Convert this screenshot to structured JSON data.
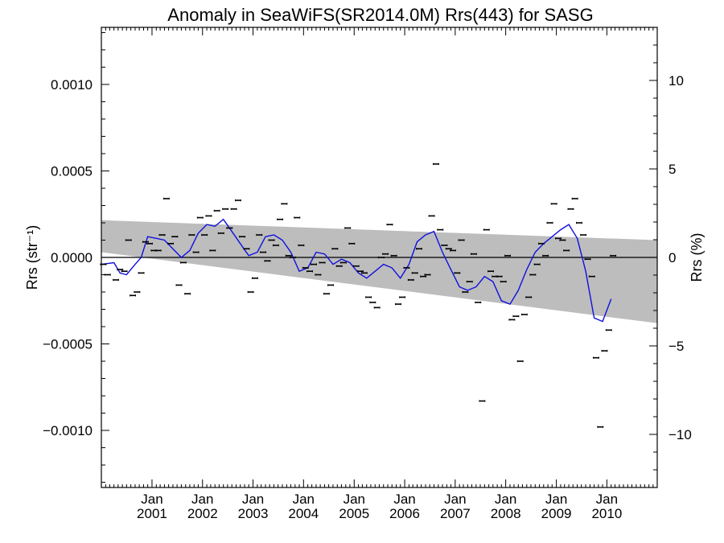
{
  "chart_data": {
    "type": "scatter",
    "title": "Anomaly in SeaWiFS(SR2014.0M) Rrs(443) for SASG",
    "ylabel_left": "Rrs (str⁻¹)",
    "ylabel_right": "Rrs (%)",
    "x_range": [
      "2000-01-01",
      "2010-12-31"
    ],
    "ylim_left": [
      -0.00133,
      0.00133
    ],
    "ylim_right": [
      -13.0,
      13.0
    ],
    "x_ticks": [
      {
        "month": "Jan",
        "year": "2001",
        "date": "2001-01-01"
      },
      {
        "month": "Jan",
        "year": "2002",
        "date": "2002-01-01"
      },
      {
        "month": "Jan",
        "year": "2003",
        "date": "2003-01-01"
      },
      {
        "month": "Jan",
        "year": "2004",
        "date": "2004-01-01"
      },
      {
        "month": "Jan",
        "year": "2005",
        "date": "2005-01-01"
      },
      {
        "month": "Jan",
        "year": "2006",
        "date": "2006-01-01"
      },
      {
        "month": "Jan",
        "year": "2007",
        "date": "2007-01-01"
      },
      {
        "month": "Jan",
        "year": "2008",
        "date": "2008-01-01"
      },
      {
        "month": "Jan",
        "year": "2009",
        "date": "2009-01-01"
      },
      {
        "month": "Jan",
        "year": "2010",
        "date": "2010-01-01"
      }
    ],
    "y_ticks_left": [
      {
        "value": 0.001,
        "label": "0.0010"
      },
      {
        "value": 0.0005,
        "label": "0.0005"
      },
      {
        "value": 0.0,
        "label": "0.0000"
      },
      {
        "value": -0.0005,
        "label": "−0.0005"
      },
      {
        "value": -0.001,
        "label": "−0.0010"
      }
    ],
    "y_ticks_right": [
      {
        "value": 10,
        "label": "10"
      },
      {
        "value": 5,
        "label": "5"
      },
      {
        "value": 0,
        "label": "0"
      },
      {
        "value": -5,
        "label": "−5"
      },
      {
        "value": -10,
        "label": "−10"
      }
    ],
    "band": {
      "upper": [
        [
          "2000-01-01",
          0.000215
        ],
        [
          "2010-12-31",
          0.0001
        ]
      ],
      "lower": [
        [
          "2000-01-01",
          3e-05
        ],
        [
          "2010-12-31",
          -0.00038
        ]
      ]
    },
    "zero_line": 0.0,
    "error_bar_halfwidth": 5e-06,
    "points": [
      [
        "2000-01-15",
        -4e-05
      ],
      [
        "2000-02-15",
        -0.0001
      ],
      [
        "2000-04-15",
        -0.00013
      ],
      [
        "2000-05-15",
        -7e-05
      ],
      [
        "2000-06-15",
        -8e-05
      ],
      [
        "2000-07-15",
        0.0001
      ],
      [
        "2000-08-15",
        -0.00022
      ],
      [
        "2000-09-15",
        -0.0002
      ],
      [
        "2000-10-15",
        -9e-05
      ],
      [
        "2000-11-15",
        9e-05
      ],
      [
        "2000-12-15",
        8e-05
      ],
      [
        "2001-01-15",
        4e-05
      ],
      [
        "2001-02-15",
        4e-05
      ],
      [
        "2001-03-15",
        0.00013
      ],
      [
        "2001-04-15",
        0.00034
      ],
      [
        "2001-05-15",
        8e-05
      ],
      [
        "2001-06-15",
        0.00012
      ],
      [
        "2001-07-15",
        -0.00016
      ],
      [
        "2001-08-15",
        -3e-05
      ],
      [
        "2001-09-15",
        -0.00021
      ],
      [
        "2001-10-15",
        0.00013
      ],
      [
        "2001-11-15",
        3e-05
      ],
      [
        "2001-12-15",
        0.00023
      ],
      [
        "2002-01-15",
        0.00013
      ],
      [
        "2002-02-15",
        0.00024
      ],
      [
        "2002-03-15",
        4e-05
      ],
      [
        "2002-04-15",
        0.00027
      ],
      [
        "2002-05-15",
        0.00014
      ],
      [
        "2002-06-15",
        0.00028
      ],
      [
        "2002-07-15",
        0.00017
      ],
      [
        "2002-08-15",
        0.00028
      ],
      [
        "2002-09-15",
        0.00033
      ],
      [
        "2002-10-15",
        0.00012
      ],
      [
        "2002-11-15",
        5e-05
      ],
      [
        "2002-12-15",
        -0.0002
      ],
      [
        "2003-01-15",
        -0.00012
      ],
      [
        "2003-02-15",
        0.00013
      ],
      [
        "2003-03-15",
        3e-05
      ],
      [
        "2003-04-15",
        -2e-05
      ],
      [
        "2003-05-15",
        0.0001
      ],
      [
        "2003-06-15",
        7e-05
      ],
      [
        "2003-07-15",
        0.00022
      ],
      [
        "2003-08-15",
        0.00031
      ],
      [
        "2003-09-15",
        1e-05
      ],
      [
        "2003-10-15",
        0.0
      ],
      [
        "2003-11-15",
        0.00023
      ],
      [
        "2003-12-15",
        7e-05
      ],
      [
        "2004-01-15",
        -6e-05
      ],
      [
        "2004-02-15",
        -8e-05
      ],
      [
        "2004-03-15",
        -4e-05
      ],
      [
        "2004-04-15",
        -0.0001
      ],
      [
        "2004-05-15",
        -3e-05
      ],
      [
        "2004-06-15",
        -0.00021
      ],
      [
        "2004-07-15",
        -0.00016
      ],
      [
        "2004-08-15",
        5e-05
      ],
      [
        "2004-09-15",
        -5e-05
      ],
      [
        "2004-10-15",
        -3e-05
      ],
      [
        "2004-11-15",
        0.00017
      ],
      [
        "2004-12-15",
        8e-05
      ],
      [
        "2005-01-15",
        -5e-05
      ],
      [
        "2005-02-15",
        -8e-05
      ],
      [
        "2005-03-15",
        -9e-05
      ],
      [
        "2005-04-15",
        -0.00023
      ],
      [
        "2005-05-15",
        -0.00026
      ],
      [
        "2005-06-15",
        -0.00029
      ],
      [
        "2005-07-15",
        0.0
      ],
      [
        "2005-08-15",
        2e-05
      ],
      [
        "2005-09-15",
        0.00019
      ],
      [
        "2005-10-15",
        1e-05
      ],
      [
        "2005-11-15",
        -0.00027
      ],
      [
        "2005-12-15",
        -0.00023
      ],
      [
        "2006-01-15",
        -6e-05
      ],
      [
        "2006-02-15",
        -0.00013
      ],
      [
        "2006-03-15",
        -9e-05
      ],
      [
        "2006-04-15",
        5e-05
      ],
      [
        "2006-05-15",
        -0.00011
      ],
      [
        "2006-06-15",
        -0.0001
      ],
      [
        "2006-07-15",
        0.00024
      ],
      [
        "2006-08-15",
        0.00054
      ],
      [
        "2006-09-15",
        0.00016
      ],
      [
        "2006-10-15",
        7e-05
      ],
      [
        "2006-11-15",
        5e-05
      ],
      [
        "2006-12-15",
        4e-05
      ],
      [
        "2007-01-15",
        -9e-05
      ],
      [
        "2007-02-15",
        0.0001
      ],
      [
        "2007-03-15",
        -0.0002
      ],
      [
        "2007-04-15",
        -0.00014
      ],
      [
        "2007-05-15",
        2e-05
      ],
      [
        "2007-06-15",
        -0.00026
      ],
      [
        "2007-07-15",
        -0.00083
      ],
      [
        "2007-08-15",
        0.00016
      ],
      [
        "2007-09-15",
        -8e-05
      ],
      [
        "2007-10-15",
        -0.00011
      ],
      [
        "2007-11-15",
        -0.00011
      ],
      [
        "2007-12-15",
        -0.00014
      ],
      [
        "2008-01-15",
        1e-05
      ],
      [
        "2008-02-15",
        -0.00036
      ],
      [
        "2008-03-15",
        -0.00034
      ],
      [
        "2008-04-15",
        -0.0006
      ],
      [
        "2008-05-15",
        -0.00033
      ],
      [
        "2008-06-15",
        -0.00023
      ],
      [
        "2008-07-15",
        -0.0001
      ],
      [
        "2008-08-15",
        -4e-05
      ],
      [
        "2008-09-15",
        8e-05
      ],
      [
        "2008-10-15",
        1e-05
      ],
      [
        "2008-11-15",
        0.0002
      ],
      [
        "2008-12-15",
        0.00031
      ],
      [
        "2009-01-15",
        0.00011
      ],
      [
        "2009-02-15",
        0.0001
      ],
      [
        "2009-03-15",
        4e-05
      ],
      [
        "2009-04-15",
        0.00028
      ],
      [
        "2009-05-15",
        0.00034
      ],
      [
        "2009-06-15",
        0.0002
      ],
      [
        "2009-07-15",
        0.00013
      ],
      [
        "2009-08-15",
        -1e-05
      ],
      [
        "2009-09-15",
        -0.00011
      ],
      [
        "2009-10-15",
        -0.00058
      ],
      [
        "2009-11-15",
        -0.00098
      ],
      [
        "2009-12-15",
        -0.00054
      ],
      [
        "2010-01-15",
        -0.00042
      ],
      [
        "2010-02-15",
        1e-05
      ]
    ],
    "smoothed_color": "#1010e0",
    "smoothed": [
      [
        "2000-01-01",
        -4e-05
      ],
      [
        "2000-04-01",
        -3e-05
      ],
      [
        "2000-05-15",
        -9e-05
      ],
      [
        "2000-07-01",
        -0.0001
      ],
      [
        "2000-09-01",
        -4e-05
      ],
      [
        "2000-10-15",
        0.0
      ],
      [
        "2000-12-01",
        0.00012
      ],
      [
        "2001-02-01",
        0.00011
      ],
      [
        "2001-04-01",
        0.0001
      ],
      [
        "2001-06-01",
        5e-05
      ],
      [
        "2001-08-01",
        0.0
      ],
      [
        "2001-10-01",
        4e-05
      ],
      [
        "2001-12-01",
        0.00014
      ],
      [
        "2002-02-01",
        0.00019
      ],
      [
        "2002-04-01",
        0.00018
      ],
      [
        "2002-06-01",
        0.00022
      ],
      [
        "2002-08-01",
        0.00015
      ],
      [
        "2002-10-01",
        8e-05
      ],
      [
        "2002-12-01",
        1e-05
      ],
      [
        "2003-02-01",
        3e-05
      ],
      [
        "2003-04-01",
        0.00012
      ],
      [
        "2003-06-01",
        0.00013
      ],
      [
        "2003-08-01",
        0.0001
      ],
      [
        "2003-10-01",
        3e-05
      ],
      [
        "2003-12-01",
        -8e-05
      ],
      [
        "2004-02-01",
        -6e-05
      ],
      [
        "2004-04-01",
        3e-05
      ],
      [
        "2004-06-01",
        2e-05
      ],
      [
        "2004-08-01",
        -4e-05
      ],
      [
        "2004-10-01",
        -1e-05
      ],
      [
        "2004-12-01",
        -3e-05
      ],
      [
        "2005-02-01",
        -9e-05
      ],
      [
        "2005-04-01",
        -0.00012
      ],
      [
        "2005-06-01",
        -8e-05
      ],
      [
        "2005-08-01",
        -4e-05
      ],
      [
        "2005-10-01",
        -6e-05
      ],
      [
        "2005-12-01",
        -0.00012
      ],
      [
        "2006-02-01",
        -4e-05
      ],
      [
        "2006-04-01",
        9e-05
      ],
      [
        "2006-06-01",
        0.00013
      ],
      [
        "2006-08-01",
        0.00015
      ],
      [
        "2006-10-01",
        3e-05
      ],
      [
        "2006-12-01",
        -7e-05
      ],
      [
        "2007-02-01",
        -0.00017
      ],
      [
        "2007-04-01",
        -0.00019
      ],
      [
        "2007-06-01",
        -0.00017
      ],
      [
        "2007-08-01",
        -0.00011
      ],
      [
        "2007-10-01",
        -0.00014
      ],
      [
        "2007-12-01",
        -0.00025
      ],
      [
        "2008-02-01",
        -0.00027
      ],
      [
        "2008-04-01",
        -0.00019
      ],
      [
        "2008-06-01",
        -7e-05
      ],
      [
        "2008-08-01",
        3e-05
      ],
      [
        "2008-10-01",
        8e-05
      ],
      [
        "2008-12-01",
        0.00012
      ],
      [
        "2009-02-01",
        0.00016
      ],
      [
        "2009-04-01",
        0.00019
      ],
      [
        "2009-06-01",
        0.00011
      ],
      [
        "2009-08-01",
        -8e-05
      ],
      [
        "2009-10-01",
        -0.00035
      ],
      [
        "2009-12-01",
        -0.00037
      ],
      [
        "2010-02-01",
        -0.00024
      ]
    ]
  }
}
